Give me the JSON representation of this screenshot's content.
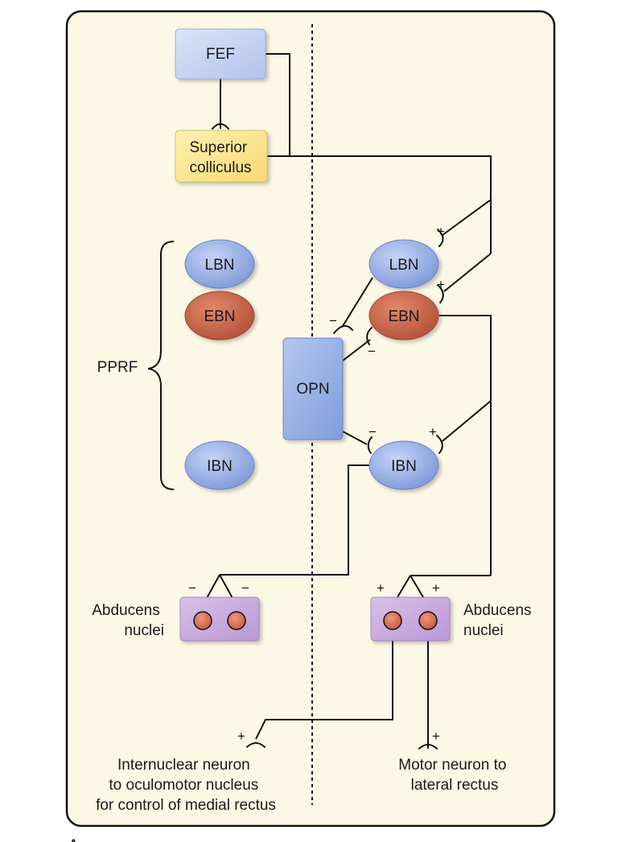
{
  "nodes": {
    "fef": "FEF",
    "superior_colliculus": [
      "Superior",
      "colliculus"
    ],
    "lbn_left": "LBN",
    "ebn_left": "EBN",
    "ibn_left": "IBN",
    "lbn_right": "LBN",
    "ebn_right": "EBN",
    "ibn_right": "IBN",
    "opn": "OPN",
    "pprf": "PPRF"
  },
  "labels": {
    "abducens_left": [
      "Abducens",
      "nuclei"
    ],
    "abducens_right": [
      "Abducens",
      "nuclei"
    ],
    "internuclear": [
      "Internuclear neuron",
      "to oculomotor nucleus",
      "for control of medial rectus"
    ],
    "motor_neuron": [
      "Motor neuron to",
      "lateral rectus"
    ],
    "panel_letter": "A"
  },
  "signs": {
    "plus": "+",
    "minus": "−"
  },
  "colors": {
    "panel_bg": "#fcf8e6",
    "blue_node": "#9fb6e8",
    "red_node": "#c9634a",
    "yellow_node": "#fbe597",
    "purple_node": "#c7a8dd",
    "fef_node": "#c9d6f3"
  }
}
